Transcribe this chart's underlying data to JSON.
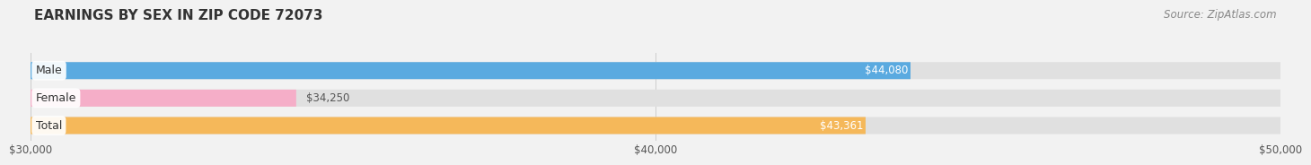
{
  "title": "EARNINGS BY SEX IN ZIP CODE 72073",
  "source": "Source: ZipAtlas.com",
  "categories": [
    "Male",
    "Female",
    "Total"
  ],
  "values": [
    44080,
    34250,
    43361
  ],
  "bar_colors": [
    "#5aaae0",
    "#f5aec8",
    "#f5b85a"
  ],
  "label_texts": [
    "$44,080",
    "$34,250",
    "$43,361"
  ],
  "label_inside": [
    true,
    false,
    true
  ],
  "xmin": 30000,
  "xmax": 50000,
  "xticks": [
    30000,
    40000,
    50000
  ],
  "xtick_labels": [
    "$30,000",
    "$40,000",
    "$50,000"
  ],
  "bar_height": 0.62,
  "background_color": "#f2f2f2",
  "bar_bg_color": "#e0e0e0",
  "title_fontsize": 11,
  "source_fontsize": 8.5,
  "label_fontsize": 8.5,
  "category_fontsize": 9,
  "cat_label_color": "#333333"
}
